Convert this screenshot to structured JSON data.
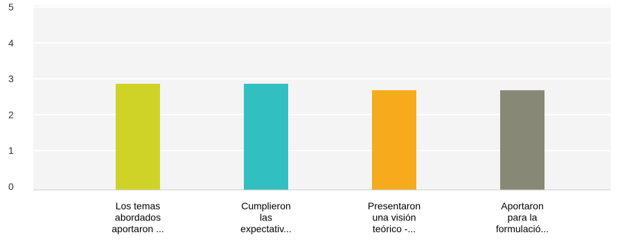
{
  "chart_data": {
    "type": "bar",
    "title": "",
    "xlabel": "",
    "ylabel": "",
    "ylim": [
      0,
      5
    ],
    "yticks": [
      0,
      1,
      2,
      3,
      4,
      5
    ],
    "grid": true,
    "legend": "none",
    "categories": [
      [
        "Los temas",
        "abordados",
        "aportaron ..."
      ],
      [
        "Cumplieron",
        "las",
        "expectativ..."
      ],
      [
        "Presentaron",
        "una visión",
        "teórico -..."
      ],
      [
        "Aportaron",
        "para la",
        "formulació..."
      ]
    ],
    "values": [
      2.86,
      2.86,
      2.68,
      2.68
    ],
    "colors": [
      "#d0d327",
      "#31bfc1",
      "#f6ab1c",
      "#888876"
    ],
    "background": "#f4f4f4",
    "grid_color": "#ffffff"
  }
}
